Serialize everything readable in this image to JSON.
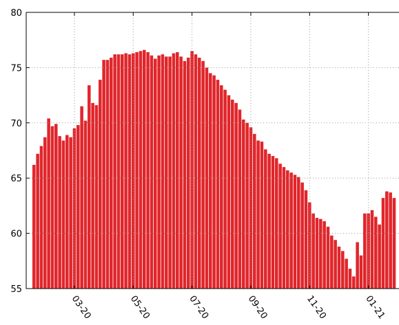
{
  "chart_data": {
    "type": "bar",
    "categories": [
      null,
      null,
      null,
      null,
      null,
      null,
      null,
      null,
      null,
      null,
      null,
      "03-20",
      null,
      null,
      null,
      null,
      null,
      null,
      null,
      null,
      null,
      null,
      null,
      null,
      null,
      null,
      null,
      "05-20",
      null,
      null,
      null,
      null,
      null,
      null,
      null,
      null,
      null,
      null,
      null,
      null,
      null,
      null,
      null,
      "07-20",
      null,
      null,
      null,
      null,
      null,
      null,
      null,
      null,
      null,
      null,
      null,
      null,
      null,
      null,
      null,
      "09-20",
      null,
      null,
      null,
      null,
      null,
      null,
      null,
      null,
      null,
      null,
      null,
      null,
      null,
      null,
      null,
      "11-20",
      null,
      null,
      null,
      null,
      null,
      null,
      null,
      null,
      null,
      null,
      null,
      null,
      null,
      null,
      null,
      "01-21",
      null,
      null,
      null,
      null,
      null,
      null,
      null
    ],
    "values": [
      66.2,
      67.2,
      67.9,
      68.7,
      70.4,
      69.7,
      69.9,
      68.8,
      68.4,
      68.9,
      68.7,
      69.5,
      69.8,
      71.5,
      70.2,
      73.4,
      71.8,
      71.6,
      73.9,
      75.7,
      75.7,
      75.9,
      76.2,
      76.2,
      76.2,
      76.3,
      76.2,
      76.3,
      76.4,
      76.5,
      76.6,
      76.4,
      76.1,
      75.8,
      76.1,
      76.2,
      76.0,
      76.0,
      76.3,
      76.4,
      76.0,
      75.6,
      75.9,
      76.5,
      76.2,
      75.9,
      75.6,
      75.0,
      74.5,
      74.3,
      73.9,
      73.4,
      73.0,
      72.5,
      72.1,
      71.8,
      71.2,
      70.3,
      70.0,
      69.6,
      69.0,
      68.4,
      68.3,
      67.6,
      67.2,
      67.0,
      66.8,
      66.3,
      66.0,
      65.7,
      65.5,
      65.3,
      65.1,
      64.6,
      63.9,
      62.8,
      61.8,
      61.4,
      61.3,
      61.1,
      60.6,
      59.8,
      59.4,
      58.8,
      58.4,
      57.7,
      56.8,
      56.1,
      59.2,
      58.0,
      61.8,
      61.8,
      62.1,
      61.5,
      60.8,
      63.2,
      63.8,
      63.7,
      63.2
    ],
    "color": "#e0262b",
    "ylim": [
      55,
      80
    ],
    "yticks": [
      55,
      60,
      65,
      70,
      75,
      80
    ],
    "grid": true
  }
}
